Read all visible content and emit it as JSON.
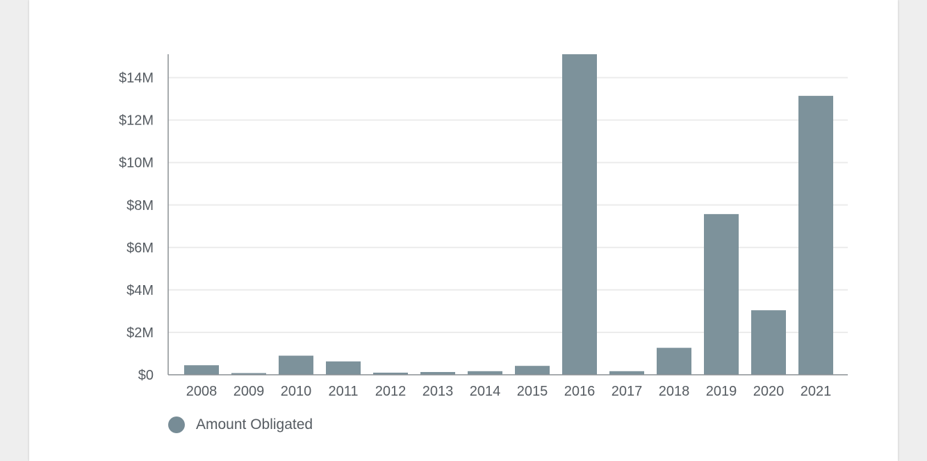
{
  "chart_data": {
    "type": "bar",
    "categories": [
      "2008",
      "2009",
      "2010",
      "2011",
      "2012",
      "2013",
      "2014",
      "2015",
      "2016",
      "2017",
      "2018",
      "2019",
      "2020",
      "2021"
    ],
    "series": [
      {
        "name": "Amount Obligated",
        "values": [
          450000,
          80000,
          900000,
          630000,
          100000,
          130000,
          170000,
          420000,
          15100000,
          170000,
          1270000,
          7570000,
          3040000,
          13140000
        ]
      }
    ],
    "ylim": [
      0,
      15100000
    ],
    "yticks": [
      0,
      2000000,
      4000000,
      6000000,
      8000000,
      10000000,
      12000000,
      14000000
    ],
    "ytick_labels": [
      "$0",
      "$2M",
      "$4M",
      "$6M",
      "$8M",
      "$10M",
      "$12M",
      "$14M"
    ],
    "grid": true,
    "legend_position": "bottom-left",
    "bar_color": "#7d929b",
    "legend_color": "#778c96"
  }
}
